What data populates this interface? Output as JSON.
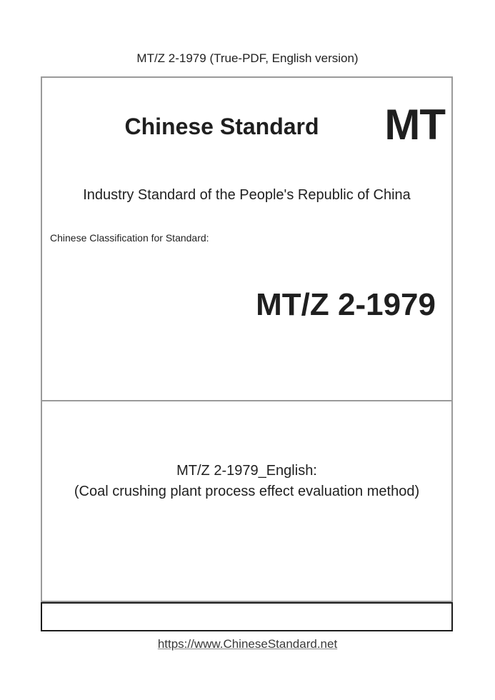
{
  "page_header": {
    "title": "MT/Z 2-1979 (True-PDF, English version)"
  },
  "cover": {
    "brand_title": "Chinese Standard",
    "brand_code": "MT",
    "subtitle": "Industry Standard of the People's Republic of China",
    "classification_label": "Chinese Classification for Standard:",
    "standard_number": "MT/Z 2-1979",
    "english_title": {
      "line1": "MT/Z 2-1979_English:",
      "line2": "(Coal crushing plant process effect evaluation method)"
    }
  },
  "footer": {
    "url": "https://www.ChineseStandard.net"
  },
  "colors": {
    "text": "#1f1f1f",
    "box_border": "#9a9a9a",
    "bottom_bar_border": "#1c1c1c",
    "link": "#3a3a3a",
    "background": "#ffffff"
  }
}
